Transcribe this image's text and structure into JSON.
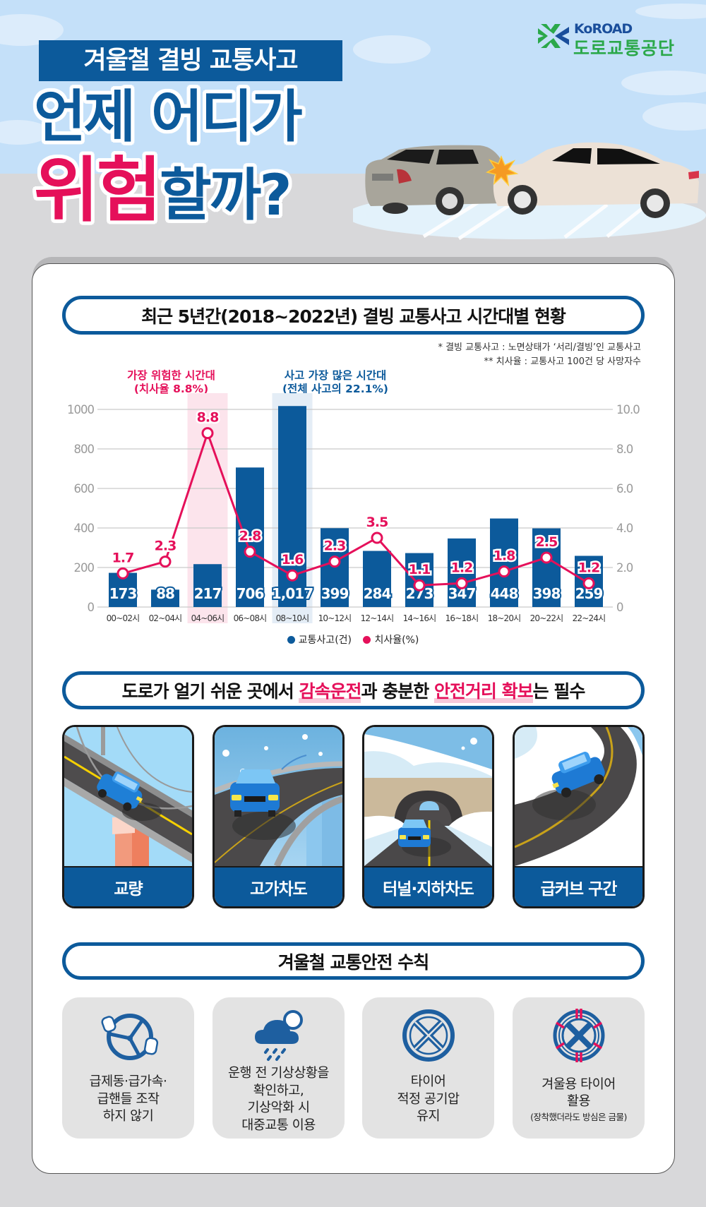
{
  "colors": {
    "navy": "#0c5a9b",
    "pink": "#e5105a",
    "sky": "#c4e0f9",
    "ground": "#d8d8da",
    "logo_green": "#2ba84a",
    "logo_blue": "#1a4e9b"
  },
  "header": {
    "tag": "겨울철 결빙 교통사고",
    "line1": "언제 어디가",
    "line2_highlight": "위험",
    "line2_rest": "할까?"
  },
  "logo": {
    "icon": "koroad-clover-icon",
    "en": "KoROAD",
    "ko": "도로교통공단"
  },
  "hero_illustration": {
    "icon": "car-collision-on-ice-illustration"
  },
  "chart_section": {
    "heading": "최근 5년간(2018~2022년) 결빙 교통사고 시간대별 현황",
    "footnotes": [
      "* 결빙 교통사고 : 노면상태가 ‘서리/결빙’인 교통사고",
      "** 치사율 : 교통사고 100건 당 사망자수"
    ],
    "annotations": [
      {
        "title": "가장 위험한 시간대",
        "detail": "(치사율 8.8%)",
        "color": "#e5105a"
      },
      {
        "title": "사고 가장 많은 시간대",
        "detail": "(전체 사고의 22.1%)",
        "color": "#0c5a9b"
      }
    ],
    "legend": [
      {
        "label": "교통사고(건)",
        "color": "#0c5a9b"
      },
      {
        "label": "치사율(%)",
        "color": "#e5105a"
      }
    ]
  },
  "chart_data": {
    "type": "bar+line",
    "title": "최근 5년간(2018~2022년) 결빙 교통사고 시간대별 현황",
    "xlabel": "",
    "categories": [
      "00~02시",
      "02~04시",
      "04~06시",
      "06~08시",
      "08~10시",
      "10~12시",
      "12~14시",
      "14~16시",
      "16~18시",
      "18~20시",
      "20~22시",
      "22~24시"
    ],
    "series": [
      {
        "name": "교통사고(건)",
        "type": "bar",
        "axis": "left",
        "color": "#0c5a9b",
        "values": [
          173,
          88,
          217,
          706,
          1017,
          399,
          284,
          273,
          347,
          448,
          398,
          259
        ],
        "labels": [
          "173",
          "88",
          "217",
          "706",
          "1,017",
          "399",
          "284",
          "273",
          "347",
          "448",
          "398",
          "259"
        ]
      },
      {
        "name": "치사율(%)",
        "type": "line",
        "axis": "right",
        "color": "#e5105a",
        "values": [
          1.7,
          2.3,
          8.8,
          2.8,
          1.6,
          2.3,
          3.5,
          1.1,
          1.2,
          1.8,
          2.5,
          1.2
        ],
        "labels": [
          "1.7",
          "2.3",
          "8.8",
          "2.8",
          "1.6",
          "2.3",
          "3.5",
          "1.1",
          "1.2",
          "1.8",
          "2.5",
          "1.2"
        ]
      }
    ],
    "y_left": {
      "ylim": [
        0,
        1000
      ],
      "ticks": [
        0,
        200,
        400,
        600,
        800,
        1000
      ],
      "tick_labels": [
        "0",
        "200",
        "400",
        "600",
        "800",
        "1000"
      ]
    },
    "y_right": {
      "ylim": [
        0,
        10
      ],
      "ticks": [
        0,
        2,
        4,
        6,
        8,
        10
      ],
      "tick_labels": [
        "0",
        "2.0",
        "4.0",
        "6.0",
        "8.0",
        "10.0"
      ]
    },
    "highlights": [
      {
        "category_index": 2,
        "color": "#fce4ec",
        "note": "가장 위험한 시간대 (치사율 8.8%)"
      },
      {
        "category_index": 4,
        "color": "#e4edf6",
        "note": "사고 가장 많은 시간대 (전체 사고의 22.1%)"
      }
    ],
    "grid": true,
    "legend_position": "bottom"
  },
  "locations_section": {
    "heading": {
      "part1": "도로가 얼기 쉬운 곳에서 ",
      "highlight1": "감속운전",
      "part2": "과 충분한 ",
      "highlight2": "안전거리 확보",
      "part3": "는 필수"
    },
    "cards": [
      {
        "label": "교량",
        "icon": "bridge-illustration"
      },
      {
        "label": "고가차도",
        "icon": "overpass-illustration"
      },
      {
        "label": "터널·지하차도",
        "icon": "tunnel-illustration"
      },
      {
        "label": "급커브 구간",
        "icon": "sharp-curve-illustration"
      }
    ]
  },
  "tips_section": {
    "heading": "겨울철 교통안전 수칙",
    "tips": [
      {
        "icon": "steering-wheel-icon",
        "lines": [
          "급제동·급가속·",
          "급핸들 조작",
          "하지 않기"
        ]
      },
      {
        "icon": "rain-cloud-moon-icon",
        "lines": [
          "운행 전 기상상황을",
          "확인하고,",
          "기상악화 시",
          "대중교통 이용"
        ]
      },
      {
        "icon": "tire-icon",
        "lines": [
          "타이어",
          "적정 공기압",
          "유지"
        ]
      },
      {
        "icon": "winter-tire-icon",
        "lines": [
          "겨울용 타이어",
          "활용"
        ],
        "note": "(장착했더라도 방심은 금물)"
      }
    ]
  }
}
